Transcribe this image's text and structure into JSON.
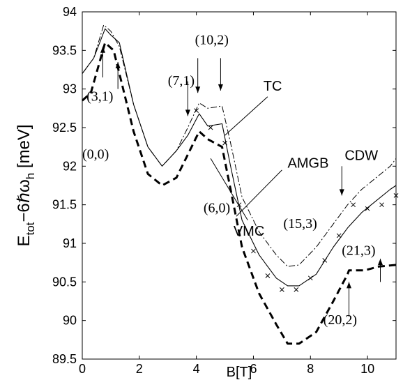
{
  "chart_data": {
    "type": "line",
    "xlabel": "B[T]",
    "ylabel_main": "E",
    "ylabel_sub1": "tot",
    "ylabel_mid": "−6ℏω",
    "ylabel_sub2": "h",
    "ylabel_unit": " [meV]",
    "xlim": [
      0,
      11
    ],
    "ylim": [
      89.5,
      94
    ],
    "xticks": [
      "0",
      "2",
      "4",
      "6",
      "8",
      "10"
    ],
    "yticks": [
      "89.5",
      "90",
      "90.5",
      "91",
      "91.5",
      "92",
      "92.5",
      "93",
      "93.5",
      "94"
    ],
    "series": [
      {
        "name": "TC",
        "style": "dashdot",
        "x": [
          0,
          0.4,
          0.75,
          1.0,
          1.3,
          1.8,
          2.3,
          2.8,
          3.3,
          3.7,
          4.1,
          4.4,
          4.9,
          5.2,
          5.6,
          6.2,
          6.8,
          7.2,
          7.6,
          8.2,
          8.8,
          9.3,
          9.8,
          10.3,
          10.8,
          11
        ],
        "y": [
          93.2,
          93.4,
          93.83,
          93.75,
          93.55,
          92.8,
          92.25,
          92.0,
          92.2,
          92.5,
          92.82,
          92.75,
          92.78,
          92.3,
          91.6,
          91.15,
          90.85,
          90.7,
          90.72,
          90.95,
          91.25,
          91.5,
          91.7,
          91.85,
          92.0,
          92.1
        ]
      },
      {
        "name": "AMGB",
        "style": "solid",
        "x": [
          0,
          0.4,
          0.8,
          1.0,
          1.3,
          1.8,
          2.3,
          2.8,
          3.3,
          3.7,
          4.1,
          4.4,
          4.9,
          5.2,
          5.6,
          6.2,
          6.8,
          7.2,
          7.6,
          8.2,
          8.8,
          9.3,
          9.8,
          10.3,
          10.8,
          11
        ],
        "y": [
          93.2,
          93.4,
          93.78,
          93.7,
          93.6,
          92.8,
          92.25,
          92.0,
          92.2,
          92.4,
          92.68,
          92.52,
          92.55,
          92.0,
          91.3,
          90.85,
          90.55,
          90.45,
          90.45,
          90.6,
          90.95,
          91.2,
          91.4,
          91.55,
          91.7,
          91.75
        ]
      },
      {
        "name": "VMC",
        "style": "dashed",
        "x": [
          0,
          0.3,
          0.8,
          1.1,
          1.4,
          1.8,
          2.3,
          2.8,
          3.3,
          3.7,
          4.1,
          4.4,
          4.9,
          5.2,
          5.6,
          6.2,
          6.8,
          7.2,
          7.6,
          8.2,
          8.8,
          9.3,
          9.35,
          9.9,
          10.4,
          11
        ],
        "y": [
          92.85,
          92.95,
          93.6,
          93.5,
          93.05,
          92.45,
          91.9,
          91.75,
          91.85,
          92.15,
          92.45,
          92.35,
          92.25,
          91.7,
          90.95,
          90.35,
          89.95,
          89.7,
          89.7,
          89.85,
          90.25,
          90.6,
          90.65,
          90.65,
          90.7,
          90.72
        ]
      }
    ],
    "markers": {
      "name": "CDW",
      "x": [
        4.0,
        4.5,
        5.0,
        5.5,
        6.0,
        6.5,
        7.0,
        7.5,
        8.0,
        8.5,
        9.0,
        9.5,
        10.0,
        10.5,
        11.0
      ],
      "y": [
        92.72,
        92.5,
        92.3,
        91.5,
        90.9,
        90.58,
        90.4,
        90.4,
        90.55,
        90.78,
        91.1,
        91.5,
        91.45,
        91.5,
        91.62
      ]
    },
    "annotations": [
      {
        "text": "(0,0)",
        "font": "serif",
        "x": 0.0,
        "y": 92.1
      },
      {
        "text": "(3,1)",
        "font": "serif",
        "x": 0.15,
        "y": 92.85
      },
      {
        "text": "(7,1)",
        "font": "serif",
        "x": 3.0,
        "y": 93.05
      },
      {
        "text": "(10,2)",
        "font": "serif",
        "x": 3.95,
        "y": 93.58
      },
      {
        "text": "TC",
        "font": "sans",
        "x": 6.35,
        "y": 92.98
      },
      {
        "text": "AMGB",
        "font": "sans",
        "x": 7.2,
        "y": 91.98
      },
      {
        "text": "CDW",
        "font": "sans",
        "x": 9.2,
        "y": 92.08
      },
      {
        "text": "(6,0)",
        "font": "serif",
        "x": 4.25,
        "y": 91.4
      },
      {
        "text": "VMC",
        "font": "sans",
        "x": 5.3,
        "y": 91.1
      },
      {
        "text": "(15,3)",
        "font": "serif",
        "x": 7.05,
        "y": 91.2
      },
      {
        "text": "(21,3)",
        "font": "serif",
        "x": 9.1,
        "y": 90.85
      },
      {
        "text": "(20,2)",
        "font": "serif",
        "x": 8.45,
        "y": 89.95
      }
    ],
    "arrows": [
      {
        "x": 0.72,
        "y1": 93.15,
        "y2": 93.55,
        "dir": "up"
      },
      {
        "x": 1.25,
        "y1": 93.0,
        "y2": 93.35,
        "dir": "up"
      },
      {
        "x": 3.7,
        "y1": 93.1,
        "y2": 92.65,
        "dir": "down"
      },
      {
        "x": 4.05,
        "y1": 93.4,
        "y2": 92.95,
        "dir": "down"
      },
      {
        "x": 4.85,
        "y1": 93.4,
        "y2": 92.98,
        "dir": "down"
      },
      {
        "x": 9.1,
        "y1": 92.0,
        "y2": 91.62,
        "dir": "down"
      },
      {
        "x": 9.35,
        "y1": 90.05,
        "y2": 90.5,
        "dir": "up"
      },
      {
        "x": 10.45,
        "y1": 90.5,
        "y2": 90.8,
        "dir": "up"
      }
    ],
    "leaders": [
      {
        "x1": 5.0,
        "y1": 92.4,
        "x2": 6.5,
        "y2": 92.9
      },
      {
        "x1": 5.4,
        "y1": 91.35,
        "x2": 7.0,
        "y2": 91.95
      },
      {
        "x1": 4.5,
        "y1": 92.1,
        "x2": 5.8,
        "y2": 91.3
      }
    ]
  }
}
